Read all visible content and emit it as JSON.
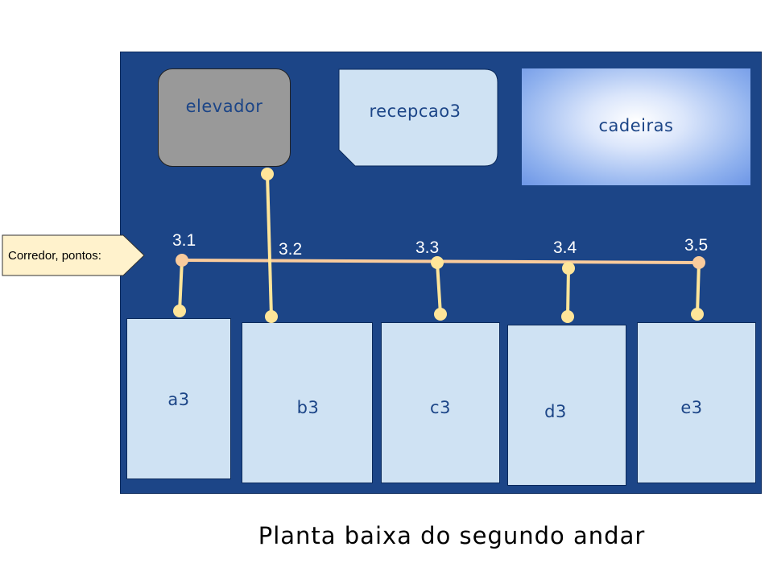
{
  "rooms": {
    "elevator": "elevador",
    "reception": "recepcao3",
    "chairs": "cadeiras",
    "offices": [
      "a3",
      "b3",
      "c3",
      "d3",
      "e3"
    ]
  },
  "corridor": {
    "callout": "Corredor, pontos:",
    "points": [
      "3.1",
      "3.2",
      "3.3",
      "3.4",
      "3.5"
    ]
  },
  "caption": "Planta baixa do segundo andar",
  "colors": {
    "floor": "#1c4587",
    "room": "#cfe2f3",
    "elevator": "#999999",
    "connector": "#ffe599",
    "corridor_node": "#f9cb9c"
  }
}
